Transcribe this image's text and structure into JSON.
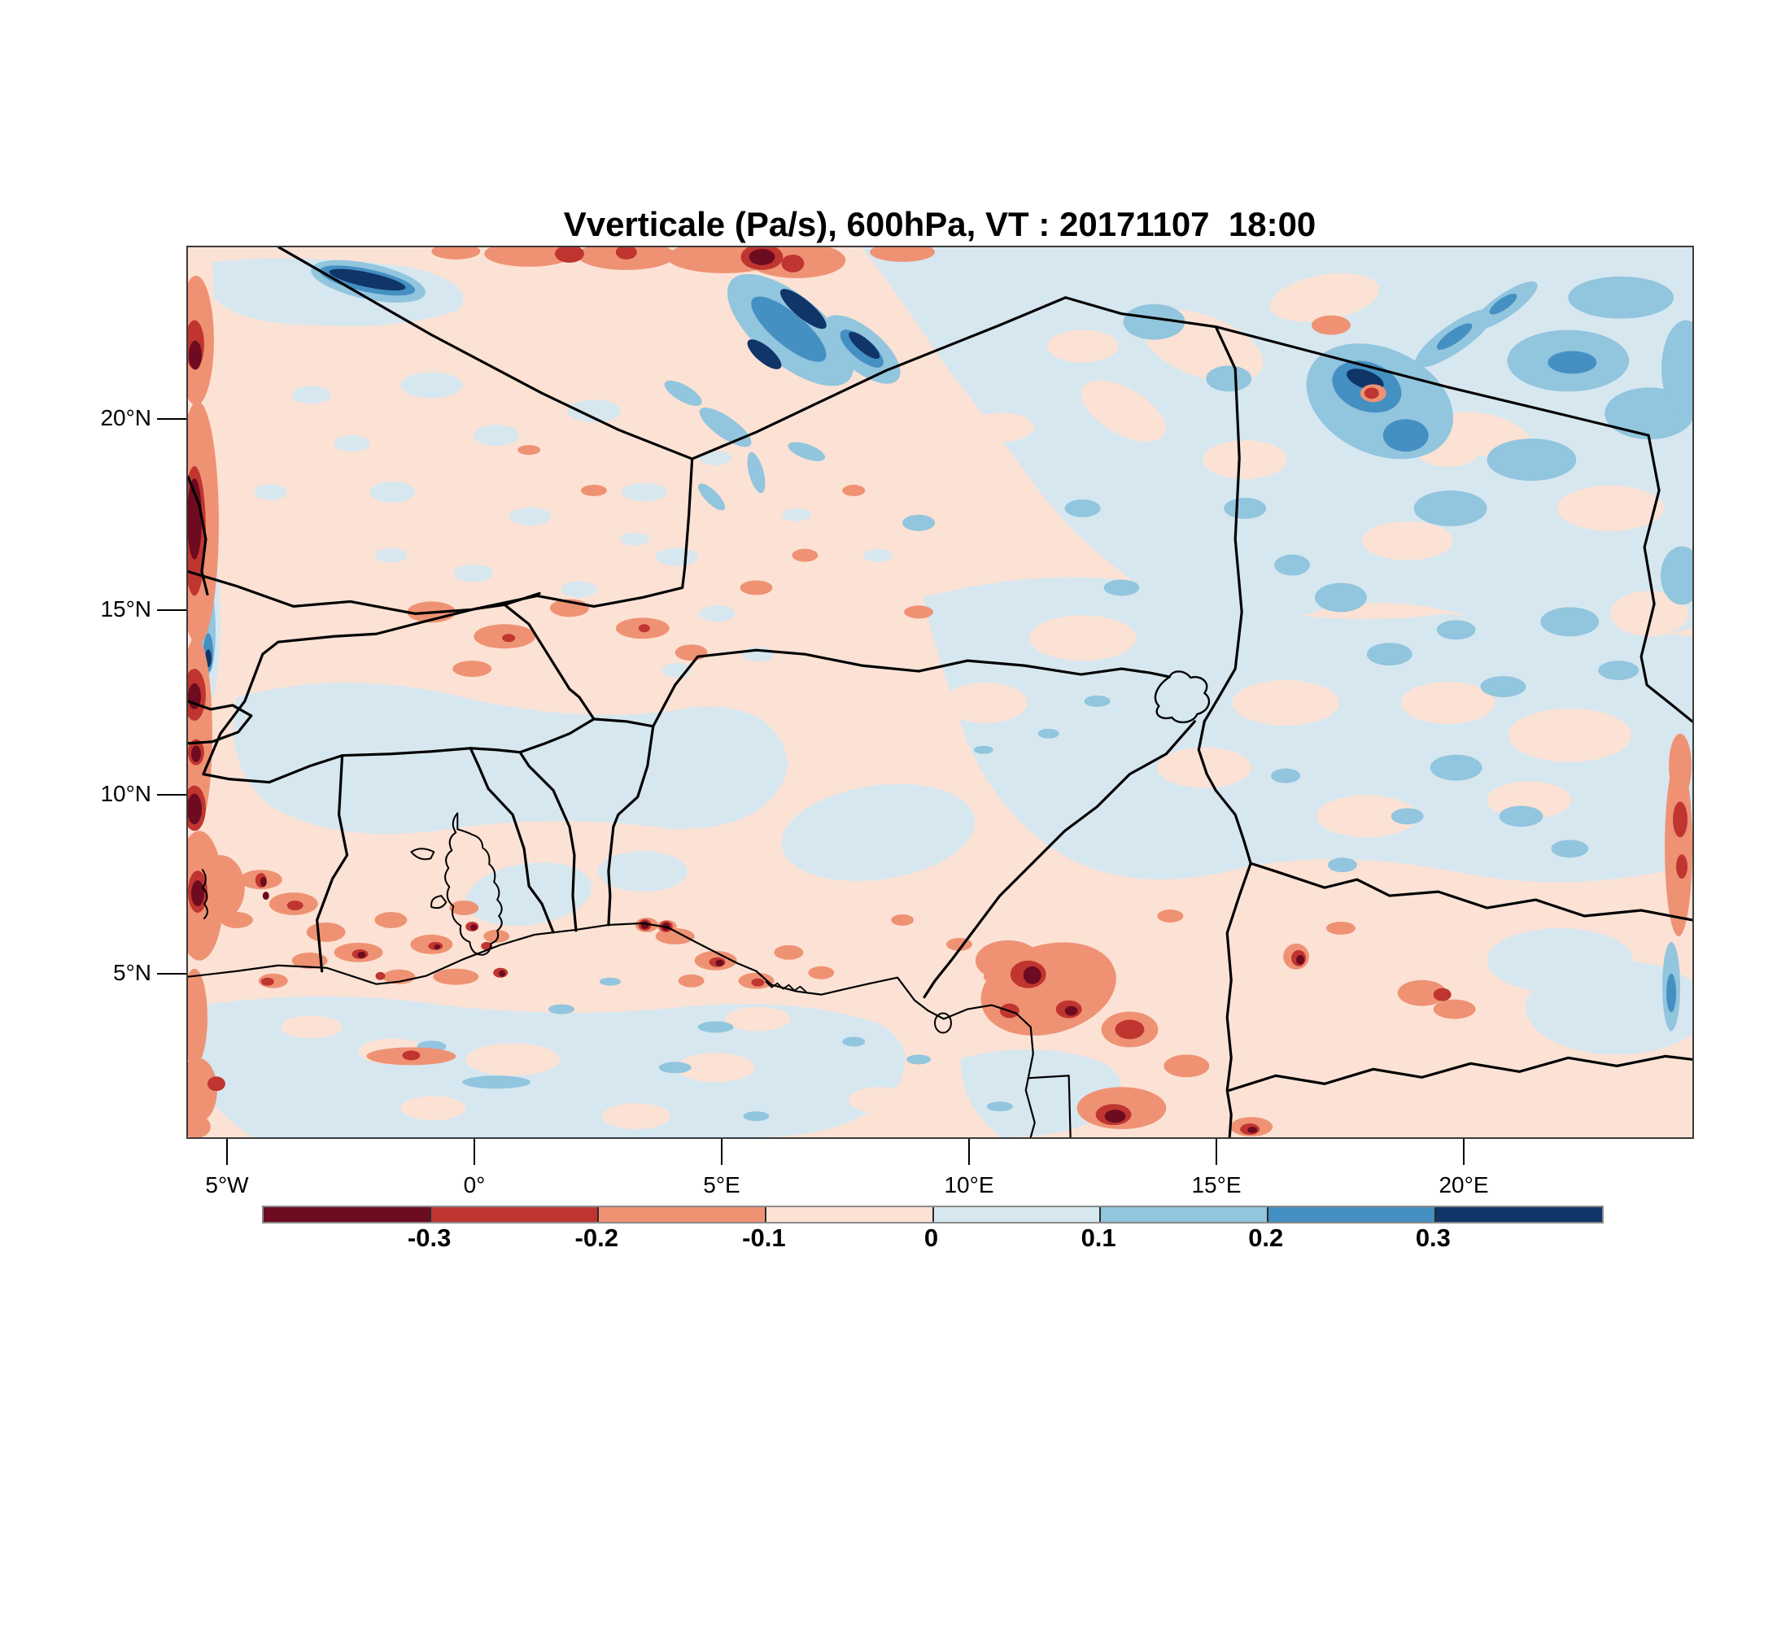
{
  "figure": {
    "title": "Vverticale (Pa/s), 600hPa, VT : 20171107  18:00"
  },
  "axes": {
    "lat_ticks": [
      {
        "label": "20°N",
        "value": 20
      },
      {
        "label": "15°N",
        "value": 15
      },
      {
        "label": "10°N",
        "value": 10
      },
      {
        "label": "5°N",
        "value": 5
      }
    ],
    "lon_ticks": [
      {
        "label": "5°W",
        "value": -5
      },
      {
        "label": "0°",
        "value": 0
      },
      {
        "label": "5°E",
        "value": 5
      },
      {
        "label": "10°E",
        "value": 10
      },
      {
        "label": "15°E",
        "value": 15
      },
      {
        "label": "20°E",
        "value": 20
      }
    ]
  },
  "colorbar": {
    "boundary_labels": [
      "-0.3",
      "-0.2",
      "-0.1",
      "0",
      "0.1",
      "0.2",
      "0.3"
    ],
    "segment_colors": [
      "#6d0b20",
      "#c03530",
      "#ef9274",
      "#fbe2d5",
      "#d7e7f0",
      "#92c5de",
      "#4590c2",
      "#103569"
    ]
  },
  "chart_data": {
    "type": "heatmap",
    "title": "Vverticale (Pa/s), 600hPa, VT : 20171107  18:00",
    "variable": "Vverticale (vertical velocity)",
    "units": "Pa/s",
    "pressure_level": "600hPa",
    "valid_time": "20171107 18:00",
    "lon_range": [
      -5.8,
      24.6
    ],
    "lat_range": [
      0.4,
      24.6
    ],
    "lon_tick_values": [
      -5,
      0,
      5,
      10,
      15,
      20
    ],
    "lat_tick_values": [
      5,
      10,
      15,
      20
    ],
    "contour_levels": [
      -0.3,
      -0.2,
      -0.1,
      0,
      0.1,
      0.2,
      0.3
    ],
    "palette": [
      "#6d0b20",
      "#c03530",
      "#ef9274",
      "#fbe2d5",
      "#d7e7f0",
      "#92c5de",
      "#4590c2",
      "#103569"
    ],
    "legend_position": "bottom",
    "grid": false,
    "overlay": "country borders, coastline, Lake Volta, Lake Chad",
    "notable_features": [
      "narrow strip of strong descent (dark red, < -0.3 Pa/s) hugging the western map edge near 6W between about 7N and 18N",
      "elongated strong-ascent streaks (dark blue, > 0.3 Pa/s) over northern Mali / southern Algeria near 0-3E, 22-24N",
      "cluster of strong ascent over NE Niger / NW Chad near 17-19E, 20-22N with a small embedded red descent spot",
      "scattered small strong-descent spots (dark red) along the Guinea Coast 4-7N over Ghana, southern Nigeria and Cameroon, strongest over Cameroon near 13-14E",
      "broad weak descent (pale red, -0.1 to 0) over the western Sahel; broad weak ascent (pale blue, 0 to 0.1) over Chad and the eastern half",
      "salmon/red strip along the eastern edge near 24E, 8-13N and a blue streak below it near 5N"
    ]
  }
}
